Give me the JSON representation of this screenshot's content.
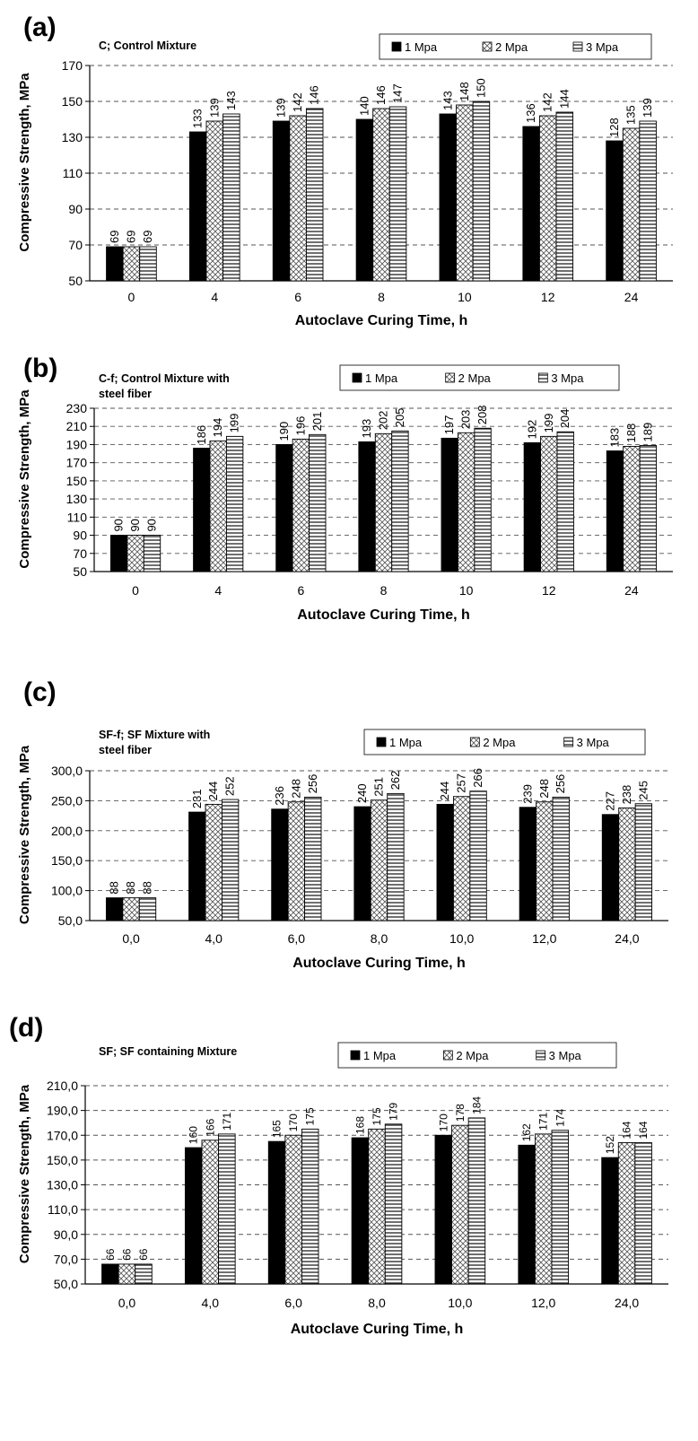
{
  "chart_data": [
    {
      "type": "bar",
      "panel_label": "(a)",
      "title": "C; Control Mixture",
      "xlabel": "Autoclave Curing Time, h",
      "ylabel": "Compressive Strength, MPa",
      "ylim": [
        50,
        170
      ],
      "yticks": [
        50,
        70,
        90,
        110,
        130,
        150,
        170
      ],
      "ytick_labels": [
        "50",
        "70",
        "90",
        "110",
        "130",
        "150",
        "170"
      ],
      "grid": true,
      "legend": "top-right",
      "categories": [
        "0",
        "4",
        "6",
        "8",
        "10",
        "12",
        "24"
      ],
      "series": [
        {
          "name": "1 Mpa",
          "values": [
            69,
            133,
            139,
            140,
            143,
            136,
            128
          ],
          "labels": [
            "69",
            "133",
            "139",
            "140",
            "143",
            "136",
            "128"
          ],
          "pattern": "solid"
        },
        {
          "name": "2 Mpa",
          "values": [
            69,
            139,
            142,
            146,
            148,
            142,
            135
          ],
          "labels": [
            "69",
            "139",
            "142",
            "146",
            "148",
            "142",
            "135"
          ],
          "pattern": "crosshatch"
        },
        {
          "name": "3 Mpa",
          "values": [
            69,
            143,
            146,
            147,
            150,
            144,
            139
          ],
          "labels": [
            "69",
            "143",
            "146",
            "147",
            "150",
            "144",
            "139"
          ],
          "pattern": "hlines"
        }
      ]
    },
    {
      "type": "bar",
      "panel_label": "(b)",
      "title": "C-f; Control Mixture with steel fiber",
      "title_lines": [
        "C-f; Control Mixture with",
        "steel fiber"
      ],
      "xlabel": "Autoclave Curing Time, h",
      "ylabel": "Compressive Strength, MPa",
      "ylim": [
        50,
        230
      ],
      "yticks": [
        50,
        70,
        90,
        110,
        130,
        150,
        170,
        190,
        210,
        230
      ],
      "ytick_labels": [
        "50",
        "70",
        "90",
        "110",
        "130",
        "150",
        "170",
        "190",
        "210",
        "230"
      ],
      "grid": true,
      "legend": "top-right",
      "categories": [
        "0",
        "4",
        "6",
        "8",
        "10",
        "12",
        "24"
      ],
      "series": [
        {
          "name": "1 Mpa",
          "values": [
            90,
            186,
            190,
            193,
            197,
            192,
            183
          ],
          "labels": [
            "90",
            "186",
            "190",
            "193",
            "197",
            "192",
            "183"
          ],
          "pattern": "solid"
        },
        {
          "name": "2 Mpa",
          "values": [
            90,
            194,
            196,
            202,
            203,
            199,
            188
          ],
          "labels": [
            "90",
            "194",
            "196",
            "202",
            "203",
            "199",
            "188"
          ],
          "pattern": "crosshatch"
        },
        {
          "name": "3 Mpa",
          "values": [
            90,
            199,
            201,
            205,
            208,
            204,
            189
          ],
          "labels": [
            "90",
            "199",
            "201",
            "205",
            "208",
            "204",
            "189"
          ],
          "pattern": "hlines"
        }
      ]
    },
    {
      "type": "bar",
      "panel_label": "(c)",
      "title": "SF-f; SF Mixture with steel fiber",
      "title_lines": [
        "SF-f; SF Mixture with",
        "steel fiber"
      ],
      "xlabel": "Autoclave Curing Time, h",
      "ylabel": "Compressive Strength, MPa",
      "ylim": [
        50,
        300
      ],
      "yticks": [
        50,
        100,
        150,
        200,
        250,
        300
      ],
      "ytick_labels": [
        "50,0",
        "100,0",
        "150,0",
        "200,0",
        "250,0",
        "300,0"
      ],
      "grid": true,
      "legend": "top-right",
      "categories": [
        "0,0",
        "4,0",
        "6,0",
        "8,0",
        "10,0",
        "12,0",
        "24,0"
      ],
      "series": [
        {
          "name": "1 Mpa",
          "values": [
            88,
            231,
            236,
            240,
            244,
            239,
            227
          ],
          "labels": [
            "88",
            "231",
            "236",
            "240",
            "244",
            "239",
            "227"
          ],
          "pattern": "solid"
        },
        {
          "name": "2 Mpa",
          "values": [
            88,
            244,
            248,
            251,
            257,
            248,
            238
          ],
          "labels": [
            "88",
            "244",
            "248",
            "251",
            "257",
            "248",
            "238"
          ],
          "pattern": "crosshatch"
        },
        {
          "name": "3 Mpa",
          "values": [
            88,
            252,
            256,
            262,
            266,
            256,
            245
          ],
          "labels": [
            "88",
            "252",
            "256",
            "262",
            "266",
            "256",
            "245"
          ],
          "pattern": "hlines"
        }
      ]
    },
    {
      "type": "bar",
      "panel_label": "(d)",
      "title": "SF; SF containing  Mixture",
      "xlabel": "Autoclave Curing Time, h",
      "ylabel": "Compressive Strength, MPa",
      "ylim": [
        50,
        210
      ],
      "yticks": [
        50,
        70,
        90,
        110,
        130,
        150,
        170,
        190,
        210
      ],
      "ytick_labels": [
        "50,0",
        "70,0",
        "90,0",
        "110,0",
        "130,0",
        "150,0",
        "170,0",
        "190,0",
        "210,0"
      ],
      "grid": true,
      "legend": "top-right",
      "categories": [
        "0,0",
        "4,0",
        "6,0",
        "8,0",
        "10,0",
        "12,0",
        "24,0"
      ],
      "series": [
        {
          "name": "1 Mpa",
          "values": [
            66,
            160,
            165,
            168,
            170,
            162,
            152
          ],
          "labels": [
            "66",
            "160",
            "165",
            "168",
            "170",
            "162",
            "152"
          ],
          "pattern": "solid"
        },
        {
          "name": "2 Mpa",
          "values": [
            66,
            166,
            170,
            175,
            178,
            171,
            164
          ],
          "labels": [
            "66",
            "166",
            "170",
            "175",
            "178",
            "171",
            "164"
          ],
          "pattern": "crosshatch"
        },
        {
          "name": "3 Mpa",
          "values": [
            66,
            171,
            175,
            179,
            184,
            174,
            164
          ],
          "labels": [
            "66",
            "171",
            "175",
            "179",
            "184",
            "174",
            "164"
          ],
          "pattern": "hlines"
        }
      ]
    }
  ]
}
